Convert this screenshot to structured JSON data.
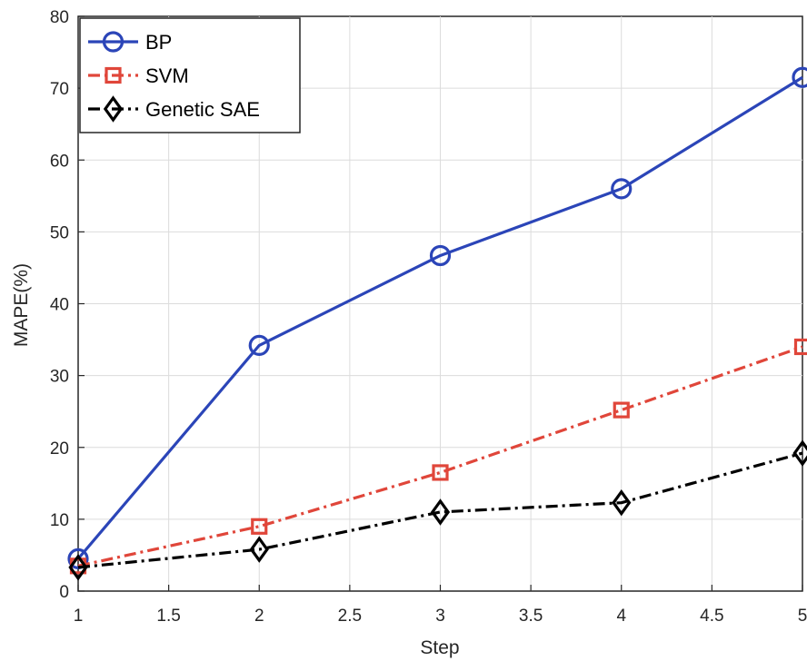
{
  "chart_data": {
    "type": "line",
    "xlabel": "Step",
    "ylabel": "MAPE(%)",
    "xlim": [
      1,
      5
    ],
    "ylim": [
      0,
      80
    ],
    "x_ticks": [
      "1",
      "1.5",
      "2",
      "2.5",
      "3",
      "3.5",
      "4",
      "4.5",
      "5"
    ],
    "y_ticks": [
      "0",
      "10",
      "20",
      "30",
      "40",
      "50",
      "60",
      "70",
      "80"
    ],
    "grid": true,
    "legend_position": "top-left",
    "x": [
      1,
      2,
      3,
      4,
      5
    ],
    "series": [
      {
        "name": "BP",
        "values": [
          4.5,
          34.2,
          46.7,
          56.0,
          71.5
        ],
        "color": "#2b45b8",
        "marker": "circle",
        "line_style": "solid"
      },
      {
        "name": "SVM",
        "values": [
          3.5,
          9.0,
          16.5,
          25.2,
          34.0
        ],
        "color": "#e0463a",
        "marker": "square",
        "line_style": "dash-dot"
      },
      {
        "name": "Genetic SAE",
        "values": [
          3.3,
          5.8,
          11.0,
          12.3,
          19.2
        ],
        "color": "#000000",
        "marker": "diamond",
        "line_style": "dash-dot"
      }
    ]
  }
}
